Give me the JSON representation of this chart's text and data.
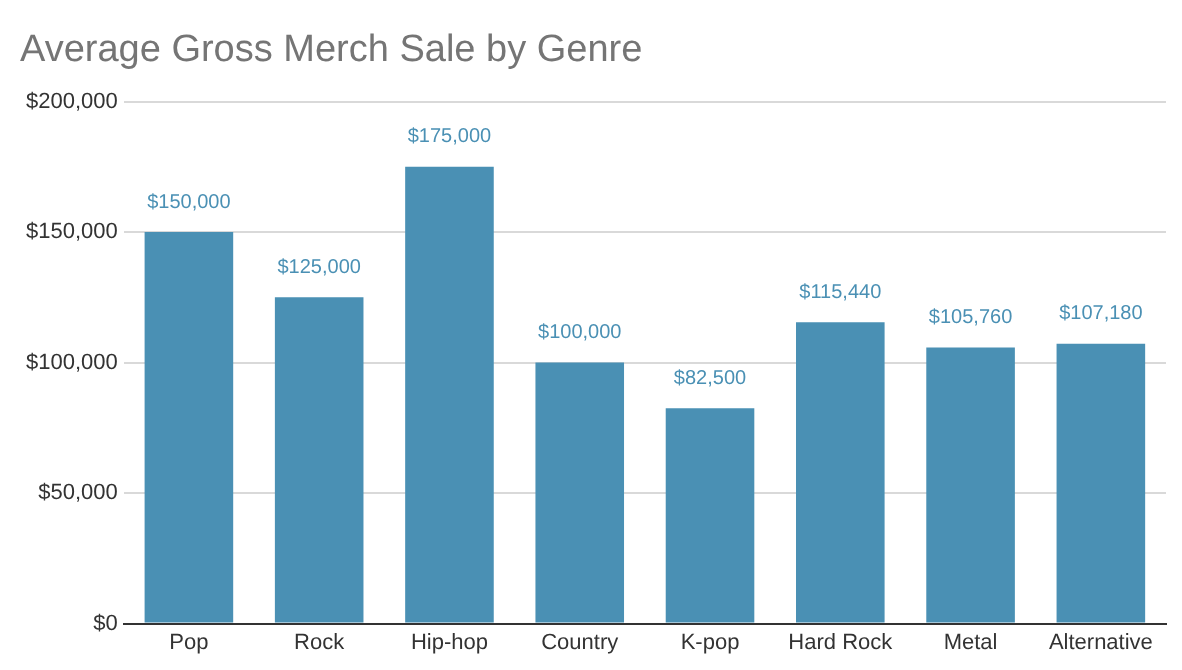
{
  "chart_data": {
    "type": "bar",
    "title": "Average Gross Merch Sale by Genre",
    "categories": [
      "Pop",
      "Rock",
      "Hip-hop",
      "Country",
      "K-pop",
      "Hard Rock",
      "Metal",
      "Alternative"
    ],
    "values": [
      150000,
      125000,
      175000,
      100000,
      82500,
      115440,
      105760,
      107180
    ],
    "value_labels": [
      "$150,000",
      "$125,000",
      "$175,000",
      "$100,000",
      "$82,500",
      "$115,440",
      "$105,760",
      "$107,180"
    ],
    "color": "#4a90b4",
    "ylim": [
      0,
      200000
    ],
    "yticks": [
      {
        "value": 0,
        "label": "$0"
      },
      {
        "value": 50000,
        "label": "$50,000"
      },
      {
        "value": 100000,
        "label": "$100,000"
      },
      {
        "value": 150000,
        "label": "$150,000"
      },
      {
        "value": 200000,
        "label": "$200,000"
      }
    ],
    "grid": "y"
  }
}
